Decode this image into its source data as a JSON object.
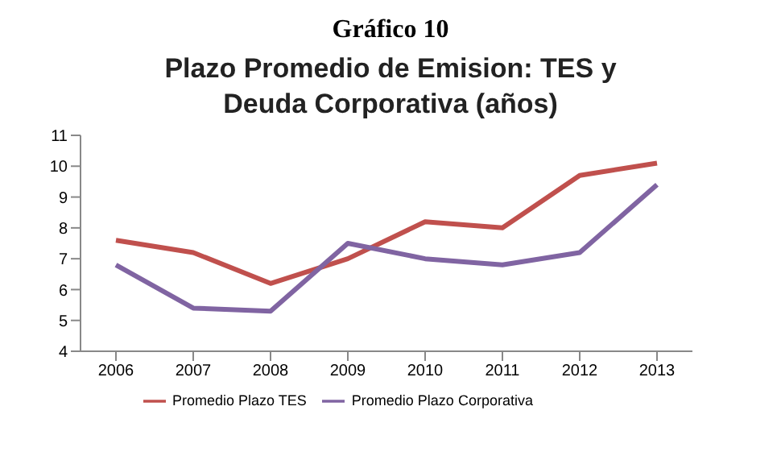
{
  "chart_data": {
    "type": "line",
    "title": "Gráfico 10",
    "subtitle": "Plazo Promedio de Emision: TES y Deuda Corporativa (años)",
    "categories": [
      "2006",
      "2007",
      "2008",
      "2009",
      "2010",
      "2011",
      "2012",
      "2013"
    ],
    "series": [
      {
        "name": "Promedio Plazo TES",
        "color": "#c0504d",
        "values": [
          7.6,
          7.2,
          6.2,
          7.0,
          8.2,
          8.0,
          9.7,
          10.1
        ]
      },
      {
        "name": "Promedio Plazo Corporativa",
        "color": "#8064a2",
        "values": [
          6.8,
          5.4,
          5.3,
          7.5,
          7.0,
          6.8,
          7.2,
          9.4
        ]
      }
    ],
    "ylim": [
      4,
      11
    ],
    "yticks": [
      4,
      5,
      6,
      7,
      8,
      9,
      10,
      11
    ],
    "grid": false,
    "legend": "bottom",
    "marker": "none",
    "line_style": "solid"
  }
}
